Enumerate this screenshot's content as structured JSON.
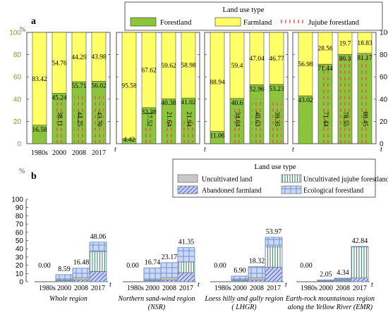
{
  "colors": {
    "forestland": "#8cc43c",
    "farmland": "#ffff66",
    "jujube_dash": "#d9534f",
    "uncultivated": "#c8c8c8",
    "uncultivated_jujube_line": "#3a7a6a",
    "abandoned_fill": "#c9cff2",
    "abandoned_hatch": "#5a6ab8",
    "ecological_fill": "#c9d8f5",
    "ecological_grid": "#6f8fd0"
  },
  "chart_data": [
    {
      "panel": "a",
      "type": "bar",
      "stacked": true,
      "ylabel": "%",
      "ylim": [
        0,
        100
      ],
      "left_ticks": [
        "0",
        "20",
        "40",
        "60",
        "80",
        "100"
      ],
      "right_ticks": [
        "100",
        "80",
        "60",
        "40",
        "20",
        "0"
      ],
      "x_unit": "t",
      "categories": [
        "1980s",
        "2000",
        "2008",
        "2017"
      ],
      "legend": {
        "title": "Land use type",
        "items": [
          "Forestland",
          "Farmland",
          "Jujube forestland"
        ]
      },
      "facets": [
        {
          "forestland": [
            16.58,
            45.24,
            55.71,
            56.02
          ],
          "farmland": [
            83.42,
            54.76,
            44.29,
            43.98
          ],
          "jujube_label": [
            "",
            "38.11",
            "44.25",
            "43.70"
          ],
          "jujube_frac": [
            0,
            0.38,
            0.44,
            0.437
          ],
          "show_x_labels": true
        },
        {
          "forestland": [
            4.42,
            32.38,
            40.38,
            41.02
          ],
          "farmland": [
            95.58,
            67.62,
            59.62,
            58.98
          ],
          "jujube_label": [
            "",
            "17.52",
            "21.64",
            "21.94"
          ],
          "jujube_frac": [
            0,
            0.175,
            0.216,
            0.219
          ],
          "show_x_labels": false
        },
        {
          "forestland": [
            11.06,
            40.6,
            52.96,
            53.23
          ],
          "farmland": [
            88.94,
            59.4,
            47.04,
            46.77
          ],
          "jujube_label": [
            "",
            "34.64",
            "40.63",
            "39.35"
          ],
          "jujube_frac": [
            0,
            0.346,
            0.406,
            0.394
          ],
          "show_x_labels": false
        },
        {
          "forestland": [
            43.02,
            71.44,
            80.3,
            81.17
          ],
          "farmland": [
            56.98,
            28.56,
            19.7,
            18.83
          ],
          "jujube_label": [
            "",
            "71.44",
            "78.55",
            "80.45"
          ],
          "jujube_frac": [
            0,
            0.714,
            0.786,
            0.805
          ],
          "show_x_labels": false
        }
      ]
    },
    {
      "panel": "b",
      "type": "bar",
      "stacked": true,
      "ylabel": "%",
      "ylim": [
        0,
        100
      ],
      "ticks": [
        "0",
        "10",
        "20",
        "30",
        "40",
        "50",
        "60",
        "70",
        "80",
        "90",
        "100"
      ],
      "x_unit": "t",
      "categories": [
        "1980s",
        "2000",
        "2008",
        "2017"
      ],
      "legend": {
        "title": "Land use type",
        "items": [
          "Uncultivated land",
          "Uncultivated jujube forestland",
          "Abandoned farmland",
          "Ecological forestland"
        ]
      },
      "facets": [
        {
          "name_lines": [
            "Whole region"
          ],
          "totals": [
            "0.00",
            "8.59",
            "16.48",
            "48.06"
          ],
          "series": {
            "uncultivated": [
              0,
              1.0,
              3.0,
              0
            ],
            "uncultivated_jujube": [
              0,
              0,
              0,
              24
            ],
            "abandoned": [
              0,
              1.0,
              2.0,
              12.5
            ],
            "ecological": [
              0,
              6.59,
              11.48,
              11.56
            ]
          }
        },
        {
          "name_lines": [
            "Northern sand-wind region",
            "(NSR)"
          ],
          "totals": [
            "0.00",
            "16.74",
            "23.17",
            "41.35"
          ],
          "series": {
            "uncultivated": [
              0,
              1.0,
              3.0,
              0
            ],
            "uncultivated_jujube": [
              0,
              0,
              0,
              13
            ],
            "abandoned": [
              0,
              1.0,
              2.0,
              11
            ],
            "ecological": [
              0,
              14.74,
              18.17,
              17.35
            ]
          }
        },
        {
          "name_lines": [
            "Loess hilly and gully region",
            "( LHGR)"
          ],
          "totals": [
            "0.00",
            "6.90",
            "18.32",
            "53.97"
          ],
          "series": {
            "uncultivated": [
              0,
              1.0,
              3.0,
              0
            ],
            "uncultivated_jujube": [
              0,
              0,
              0,
              25
            ],
            "abandoned": [
              0,
              1.0,
              2.0,
              17.5
            ],
            "ecological": [
              0,
              4.9,
              13.32,
              11.47
            ]
          }
        },
        {
          "name_lines": [
            "Earth-rock mountainous region",
            "along the Yellow River (EMR)"
          ],
          "totals": [
            "0.00",
            "2.05",
            "4.34",
            "42.84"
          ],
          "series": {
            "uncultivated": [
              0,
              0.5,
              1.5,
              0
            ],
            "uncultivated_jujube": [
              0,
              0,
              0,
              37.8
            ],
            "abandoned": [
              0,
              0.5,
              1.0,
              4.5
            ],
            "ecological": [
              0,
              1.05,
              1.84,
              0.54
            ]
          }
        }
      ]
    }
  ]
}
